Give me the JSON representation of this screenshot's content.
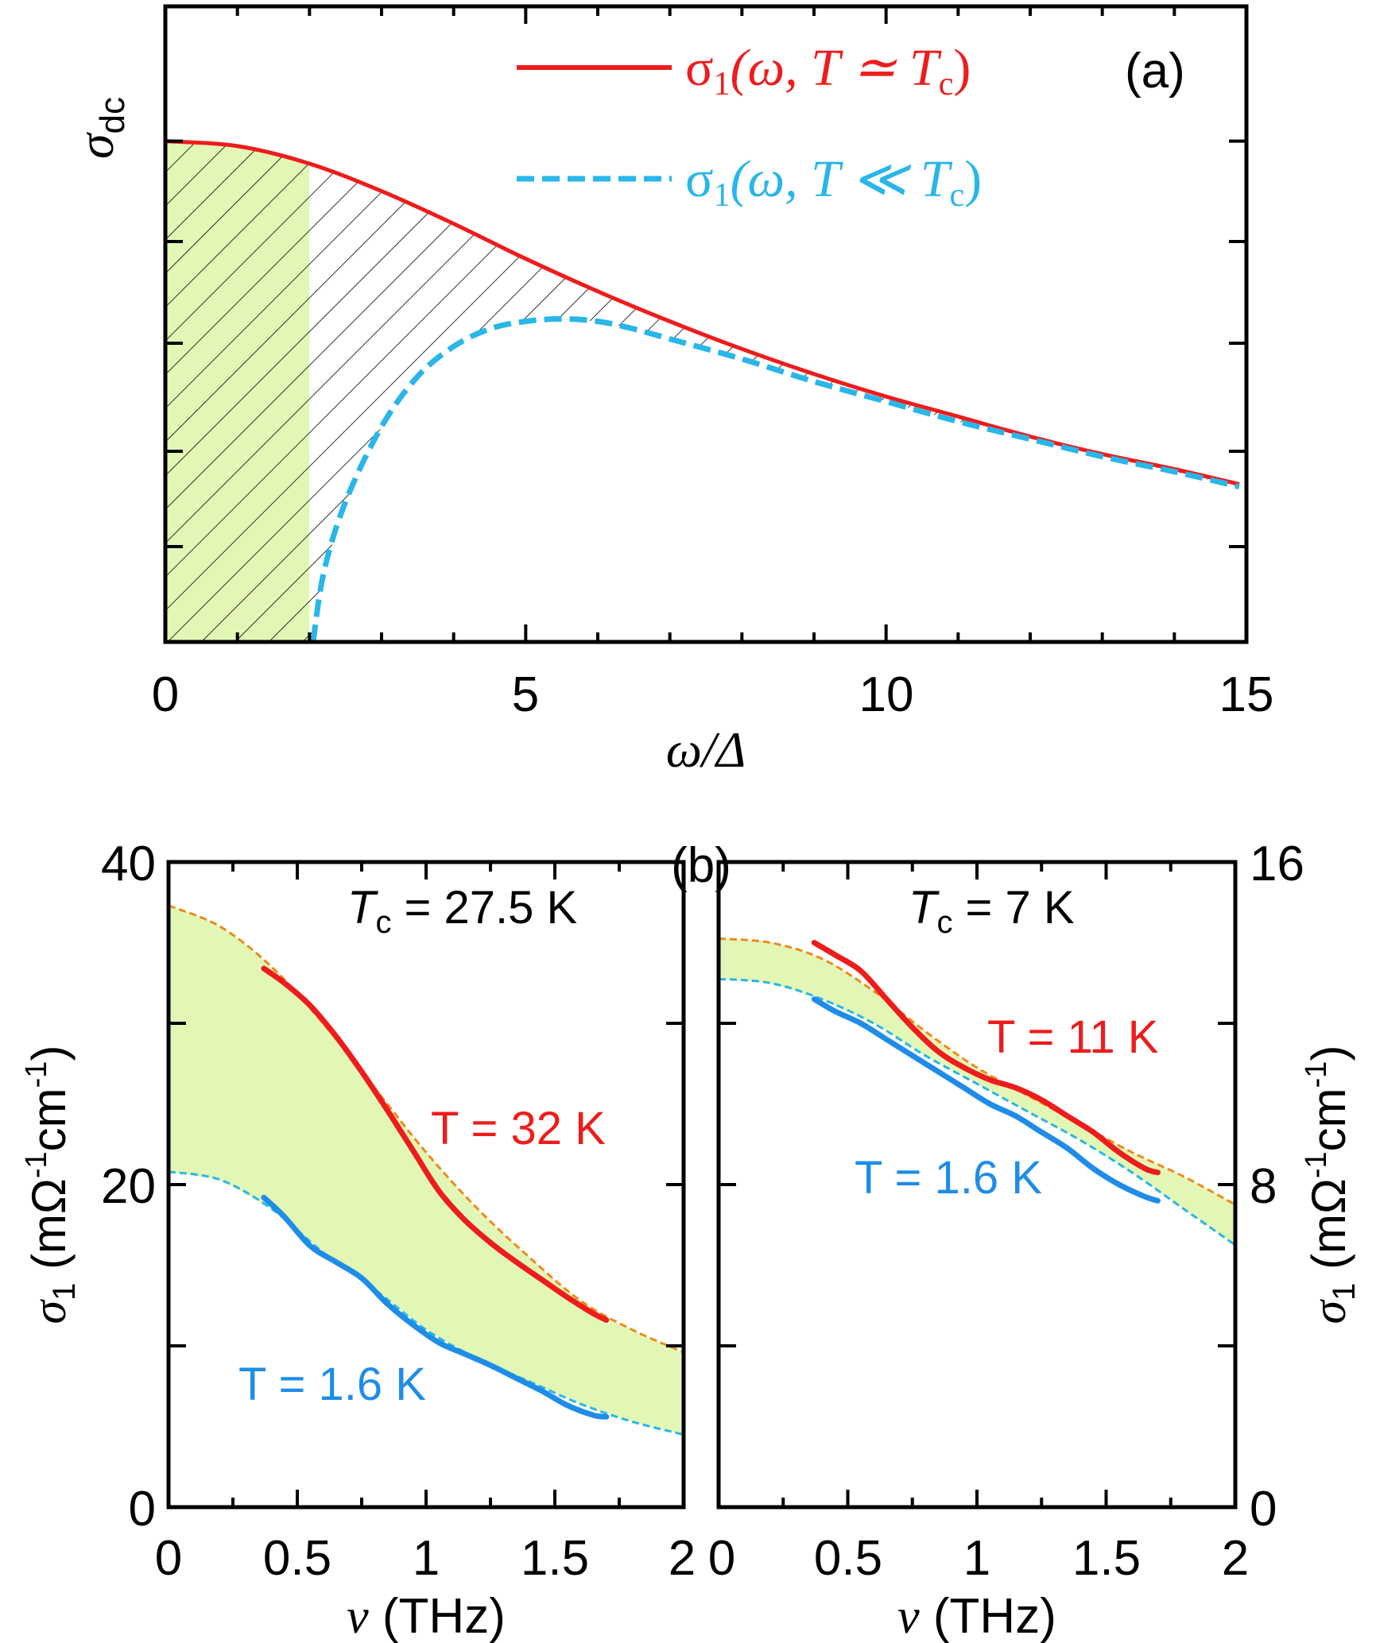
{
  "chart_data": [
    {
      "type": "line",
      "panel_label": "(a)",
      "xlabel": "ω/Δ",
      "ylabel_main": "σ",
      "ylabel_sub": "dc",
      "xlim": [
        0,
        15
      ],
      "ylim": [
        0,
        1
      ],
      "xticks": [
        0,
        5,
        10,
        15
      ],
      "xtick_labels": [
        "0",
        "5",
        "10",
        "15"
      ],
      "shaded_region": {
        "x": [
          0,
          2
        ],
        "color": "#e2f7b6"
      },
      "series": [
        {
          "name": "σ1(ω, T ≃ Tc)",
          "legend_main": "σ",
          "legend_sub": "1",
          "legend_rest": "(ω, T ≃ T",
          "legend_rest_sub": "c",
          "legend_close": ")",
          "color": "#ee1c1c",
          "style": "solid",
          "x": [
            0,
            1,
            2,
            3,
            4,
            5,
            6,
            7,
            8,
            9,
            10,
            11,
            12,
            13,
            14,
            14.9
          ],
          "y": [
            1.0,
            0.99,
            0.955,
            0.9,
            0.835,
            0.765,
            0.7,
            0.64,
            0.585,
            0.535,
            0.49,
            0.45,
            0.41,
            0.375,
            0.345,
            0.315
          ]
        },
        {
          "name": "σ1(ω, T ≪ Tc)",
          "legend_main": "σ",
          "legend_sub": "1",
          "legend_rest": "(ω, T ≪ T",
          "legend_rest_sub": "c",
          "legend_close": ")",
          "color": "#29b6e8",
          "style": "dashed",
          "x": [
            2.05,
            2.2,
            2.5,
            3,
            3.5,
            4,
            4.5,
            5,
            5.5,
            6,
            6.5,
            7,
            8,
            9,
            10,
            11,
            12,
            13,
            14,
            14.9
          ],
          "y": [
            0.0,
            0.14,
            0.28,
            0.43,
            0.53,
            0.59,
            0.625,
            0.64,
            0.645,
            0.64,
            0.625,
            0.605,
            0.565,
            0.52,
            0.48,
            0.44,
            0.405,
            0.37,
            0.34,
            0.31
          ]
        }
      ]
    },
    {
      "type": "line",
      "panel_label": "(b)",
      "title_main": "T",
      "title_sub": "c",
      "title_rest": " = 27.5 K",
      "xlabel_main": "ν",
      "xlabel_rest": " (THz)",
      "ylabel_main": "σ",
      "ylabel_sub": "1",
      "ylabel_rest": " (mΩ",
      "ylabel_exp1": "-1",
      "ylabel_cm": "cm",
      "ylabel_exp2": "-1",
      "ylabel_close": ")",
      "xlim": [
        0,
        2
      ],
      "ylim": [
        0,
        40
      ],
      "xticks": [
        0,
        0.5,
        1,
        1.5,
        2
      ],
      "xtick_labels": [
        "0",
        "0.5",
        "1",
        "1.5",
        "2"
      ],
      "yticks": [
        0,
        20,
        40
      ],
      "ytick_labels": [
        "0",
        "20",
        "40"
      ],
      "fill_color": "#e2f7b6",
      "series": [
        {
          "name": "T = 32 K",
          "color": "#ee1c1c",
          "fit_color": "#f08a1c",
          "fit_x": [
            0,
            0.2,
            0.4,
            0.6,
            0.8,
            1.0,
            1.2,
            1.4,
            1.6,
            1.8,
            2.0
          ],
          "fit_y": [
            37.3,
            36.0,
            33.5,
            30.0,
            26.0,
            22.0,
            18.5,
            15.5,
            12.8,
            11.0,
            9.6
          ],
          "data_x": [
            0.37,
            0.45,
            0.55,
            0.65,
            0.75,
            0.85,
            0.95,
            1.05,
            1.15,
            1.25,
            1.35,
            1.45,
            1.55,
            1.65,
            1.7
          ],
          "data_y": [
            33.4,
            32.5,
            31.1,
            29.2,
            27.0,
            24.6,
            22.1,
            19.6,
            17.8,
            16.4,
            15.2,
            14.1,
            13.0,
            12.0,
            11.6
          ]
        },
        {
          "name": "T = 1.6 K",
          "color": "#1f8de8",
          "fit_color": "#29b6e8",
          "fit_x": [
            0,
            0.2,
            0.4,
            0.6,
            0.8,
            1.0,
            1.2,
            1.4,
            1.6,
            1.8,
            2.0
          ],
          "fit_y": [
            20.8,
            20.3,
            18.5,
            15.8,
            13.5,
            11.0,
            9.2,
            7.8,
            6.4,
            5.3,
            4.5
          ],
          "data_x": [
            0.37,
            0.45,
            0.55,
            0.65,
            0.75,
            0.85,
            0.95,
            1.05,
            1.15,
            1.25,
            1.35,
            1.45,
            1.55,
            1.65,
            1.7
          ],
          "data_y": [
            19.2,
            18.0,
            16.2,
            15.2,
            14.2,
            12.6,
            11.3,
            10.2,
            9.5,
            8.8,
            8.0,
            7.2,
            6.3,
            5.7,
            5.6
          ]
        }
      ]
    },
    {
      "type": "line",
      "title_main": "T",
      "title_sub": "c",
      "title_rest": " = 7 K",
      "xlabel_main": "ν",
      "xlabel_rest": " (THz)",
      "ylabel_main": "σ",
      "ylabel_sub": "1",
      "ylabel_rest": " (mΩ",
      "ylabel_exp1": "-1",
      "ylabel_cm": "cm",
      "ylabel_exp2": "-1",
      "ylabel_close": ")",
      "xlim": [
        0,
        2
      ],
      "ylim": [
        0,
        16
      ],
      "xticks": [
        0,
        0.5,
        1,
        1.5,
        2
      ],
      "xtick_labels": [
        "0",
        "0.5",
        "1",
        "1.5",
        "2"
      ],
      "yticks": [
        0,
        8,
        16
      ],
      "ytick_labels": [
        "0",
        "8",
        "16"
      ],
      "fill_color": "#e2f7b6",
      "series": [
        {
          "name": "T = 11 K",
          "color": "#ee1c1c",
          "fit_color": "#f08a1c",
          "fit_x": [
            0,
            0.2,
            0.4,
            0.6,
            0.8,
            1.0,
            1.2,
            1.4,
            1.6,
            1.8,
            2.0
          ],
          "fit_y": [
            14.1,
            14.0,
            13.6,
            12.8,
            11.8,
            10.9,
            10.2,
            9.5,
            8.8,
            8.2,
            7.5
          ],
          "data_x": [
            0.37,
            0.45,
            0.55,
            0.65,
            0.75,
            0.85,
            0.95,
            1.05,
            1.15,
            1.25,
            1.35,
            1.45,
            1.55,
            1.65,
            1.7
          ],
          "data_y": [
            14.0,
            13.7,
            13.3,
            12.6,
            11.9,
            11.3,
            10.9,
            10.6,
            10.4,
            10.1,
            9.7,
            9.3,
            8.8,
            8.4,
            8.3
          ]
        },
        {
          "name": "T = 1.6 K",
          "color": "#1f8de8",
          "fit_color": "#29b6e8",
          "fit_x": [
            0,
            0.2,
            0.4,
            0.6,
            0.8,
            1.0,
            1.2,
            1.4,
            1.6,
            1.8,
            2.0
          ],
          "fit_y": [
            13.1,
            13.0,
            12.6,
            12.0,
            11.2,
            10.5,
            9.8,
            9.1,
            8.3,
            7.4,
            6.5
          ],
          "data_x": [
            0.37,
            0.45,
            0.55,
            0.65,
            0.75,
            0.85,
            0.95,
            1.05,
            1.15,
            1.25,
            1.35,
            1.45,
            1.55,
            1.65,
            1.7
          ],
          "data_y": [
            12.6,
            12.3,
            12.0,
            11.6,
            11.2,
            10.8,
            10.4,
            10.0,
            9.7,
            9.3,
            8.9,
            8.4,
            8.0,
            7.7,
            7.6
          ]
        }
      ]
    }
  ]
}
